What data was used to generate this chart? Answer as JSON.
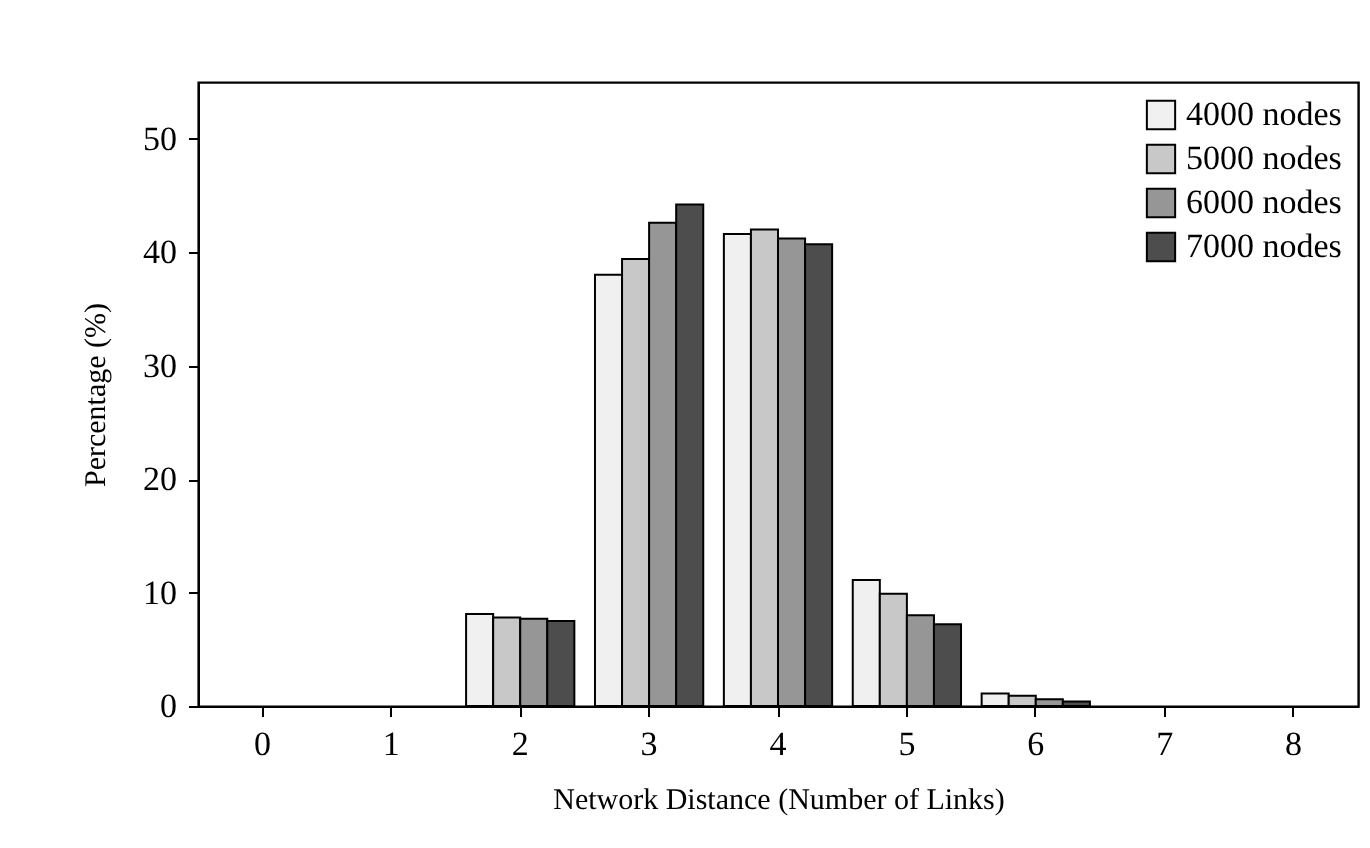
{
  "chart_data": {
    "type": "bar",
    "xlabel": "Network Distance (Number of Links)",
    "ylabel": "Percentage (%)",
    "categories": [
      "0",
      "1",
      "2",
      "3",
      "4",
      "5",
      "6",
      "7",
      "8"
    ],
    "series": [
      {
        "name": "4000 nodes",
        "color": "#f0f0f0",
        "values": [
          0,
          0,
          8.1,
          38.0,
          41.6,
          11.1,
          1.1,
          0,
          0
        ]
      },
      {
        "name": "5000 nodes",
        "color": "#c8c8c8",
        "values": [
          0,
          0,
          7.8,
          39.4,
          42.0,
          9.9,
          0.9,
          0,
          0
        ]
      },
      {
        "name": "6000 nodes",
        "color": "#969696",
        "values": [
          0,
          0,
          7.7,
          42.6,
          41.2,
          8.0,
          0.6,
          0,
          0
        ]
      },
      {
        "name": "7000 nodes",
        "color": "#4d4d4d",
        "values": [
          0,
          0,
          7.5,
          44.2,
          40.7,
          7.2,
          0.4,
          0,
          0
        ]
      }
    ],
    "ylim": [
      0,
      55
    ],
    "yticks": [
      0,
      10,
      20,
      30,
      40,
      50
    ],
    "legend": "top right",
    "grid": false
  }
}
